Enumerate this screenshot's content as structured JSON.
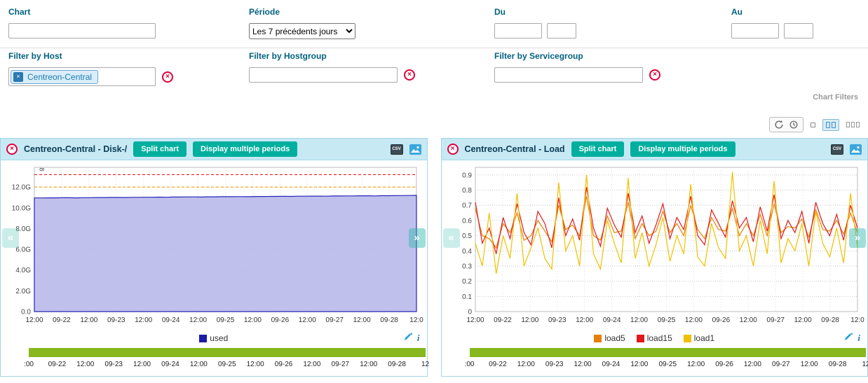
{
  "filters": {
    "chart": {
      "label": "Chart",
      "value": ""
    },
    "periode": {
      "label": "Période",
      "value": "Les 7 précédents jours"
    },
    "du": {
      "label": "Du",
      "date": "",
      "time": ""
    },
    "au": {
      "label": "Au",
      "date": "",
      "time": ""
    },
    "host": {
      "label": "Filter by Host",
      "chip": "Centreon-Central"
    },
    "hostgroup": {
      "label": "Filter by Hostgroup",
      "value": ""
    },
    "servicegroup": {
      "label": "Filter by Servicegroup",
      "value": ""
    },
    "section_label": "Chart Filters"
  },
  "icons": {
    "scroll_left": "«",
    "scroll_right": "»",
    "csv_label": "CSV",
    "info_glyph": "i",
    "remove_x": "×",
    "chip_x": "×"
  },
  "panels": [
    {
      "title": "Centreon-Central - Disk-/",
      "split_label": "Split chart",
      "multi_label": "Display multiple periods"
    },
    {
      "title": "Centreon-Central - Load",
      "split_label": "Split chart",
      "multi_label": "Display multiple periods"
    }
  ],
  "chart_data": [
    {
      "type": "area",
      "title": "Centreon-Central - Disk-/",
      "annotation": "8",
      "ylim": [
        0,
        13.9
      ],
      "y_ticks": [
        0,
        2,
        4,
        6,
        8,
        10,
        12
      ],
      "y_tick_labels": [
        "0.0",
        "2.0G",
        "4.0G",
        "6.0G",
        "8.0G",
        "10.0G",
        "12.0G"
      ],
      "x_tick_labels": [
        "12:00",
        "09-22",
        "12:00",
        "09-23",
        "12:00",
        "09-24",
        "12:00",
        "09-25",
        "12:00",
        "09-26",
        "12:00",
        "09-27",
        "12:00",
        "09-28",
        "12:0"
      ],
      "thresholds": [
        {
          "name": "warning",
          "value": 12.0,
          "color": "#ff9e01"
        },
        {
          "name": "critical",
          "value": 13.2,
          "color": "#e30000"
        }
      ],
      "series": [
        {
          "name": "used",
          "color": "#2525b8",
          "fill": "#b9b9ea",
          "values": [
            10.95,
            10.95,
            10.96,
            10.96,
            10.97,
            10.97,
            10.96,
            10.98,
            10.98,
            10.99,
            10.99,
            11.0,
            11.0,
            10.99,
            11.01,
            11.01,
            11.02,
            11.02,
            11.03,
            11.02,
            11.04,
            11.04,
            11.05,
            11.05,
            11.04,
            11.06,
            11.06,
            11.07,
            11.07,
            11.08,
            11.08,
            11.07,
            11.09,
            11.09,
            11.1,
            11.1,
            11.11,
            11.1,
            11.12,
            11.12,
            11.13,
            11.13,
            11.12,
            11.14,
            11.14,
            11.15,
            11.15,
            11.16,
            11.16,
            11.15,
            11.17,
            11.17,
            11.18,
            11.18,
            11.19,
            11.2
          ]
        }
      ],
      "legend": [
        {
          "label": "used",
          "color": "#1a1aa8"
        }
      ],
      "timeline_labels": [
        ":00",
        "09-22",
        "12:00",
        "09-23",
        "12:00",
        "09-24",
        "12:00",
        "09-25",
        "12:00",
        "09-26",
        "12:00",
        "09-27",
        "12:00",
        "09-28",
        "12"
      ]
    },
    {
      "type": "line",
      "title": "Centreon-Central - Load",
      "ylim": [
        0,
        0.95
      ],
      "y_ticks": [
        0,
        0.1,
        0.2,
        0.3,
        0.4,
        0.5,
        0.6,
        0.7,
        0.8,
        0.9
      ],
      "y_tick_labels": [
        "0",
        "0.1",
        "0.2",
        "0.3",
        "0.4",
        "0.5",
        "0.6",
        "0.7",
        "0.8",
        "0.9"
      ],
      "x_tick_labels": [
        "12:00",
        "09-22",
        "12:00",
        "09-23",
        "12:00",
        "09-24",
        "12:00",
        "09-25",
        "12:00",
        "09-26",
        "12:00",
        "09-27",
        "12:00",
        "09-28",
        "12:0"
      ],
      "thresholds": [],
      "series": [
        {
          "name": "load5",
          "color": "#e87e04",
          "values": [
            0.68,
            0.5,
            0.48,
            0.42,
            0.58,
            0.52,
            0.65,
            0.47,
            0.5,
            0.6,
            0.53,
            0.46,
            0.7,
            0.54,
            0.57,
            0.5,
            0.76,
            0.5,
            0.47,
            0.63,
            0.52,
            0.53,
            0.72,
            0.48,
            0.58,
            0.5,
            0.53,
            0.66,
            0.52,
            0.58,
            0.5,
            0.7,
            0.54,
            0.48,
            0.62,
            0.54,
            0.53,
            0.68,
            0.5,
            0.58,
            0.5,
            0.64,
            0.5,
            0.71,
            0.52,
            0.56,
            0.55,
            0.61,
            0.49,
            0.67,
            0.54,
            0.53,
            0.6,
            0.51,
            0.65,
            0.52
          ]
        },
        {
          "name": "load15",
          "color": "#e01a1a",
          "values": [
            0.72,
            0.45,
            0.55,
            0.38,
            0.62,
            0.48,
            0.71,
            0.52,
            0.44,
            0.66,
            0.58,
            0.42,
            0.75,
            0.5,
            0.61,
            0.47,
            0.82,
            0.55,
            0.43,
            0.68,
            0.57,
            0.49,
            0.78,
            0.52,
            0.63,
            0.45,
            0.57,
            0.71,
            0.48,
            0.62,
            0.54,
            0.76,
            0.5,
            0.44,
            0.67,
            0.58,
            0.49,
            0.73,
            0.55,
            0.62,
            0.46,
            0.69,
            0.53,
            0.77,
            0.48,
            0.6,
            0.52,
            0.66,
            0.45,
            0.72,
            0.58,
            0.5,
            0.64,
            0.47,
            0.7,
            0.55
          ]
        },
        {
          "name": "load1",
          "color": "#f0c000",
          "values": [
            0.45,
            0.3,
            0.65,
            0.25,
            0.5,
            0.35,
            0.78,
            0.3,
            0.42,
            0.55,
            0.35,
            0.28,
            0.85,
            0.4,
            0.5,
            0.3,
            0.9,
            0.38,
            0.28,
            0.6,
            0.45,
            0.32,
            0.88,
            0.35,
            0.52,
            0.3,
            0.44,
            0.62,
            0.33,
            0.5,
            0.38,
            0.84,
            0.36,
            0.3,
            0.58,
            0.42,
            0.35,
            0.92,
            0.4,
            0.5,
            0.3,
            0.6,
            0.38,
            0.86,
            0.32,
            0.48,
            0.4,
            0.58,
            0.3,
            0.66,
            0.45,
            0.36,
            0.55,
            0.32,
            0.78,
            0.42
          ]
        }
      ],
      "legend": [
        {
          "label": "load5",
          "color": "#e87e04"
        },
        {
          "label": "load15",
          "color": "#e01a1a"
        },
        {
          "label": "load1",
          "color": "#f0c000"
        }
      ],
      "timeline_labels": [
        ":00",
        "09-22",
        "12:00",
        "09-23",
        "12:00",
        "09-24",
        "12:00",
        "09-25",
        "12:00",
        "09-26",
        "12:00",
        "09-27",
        "12:00",
        "09-28",
        "12"
      ]
    }
  ]
}
